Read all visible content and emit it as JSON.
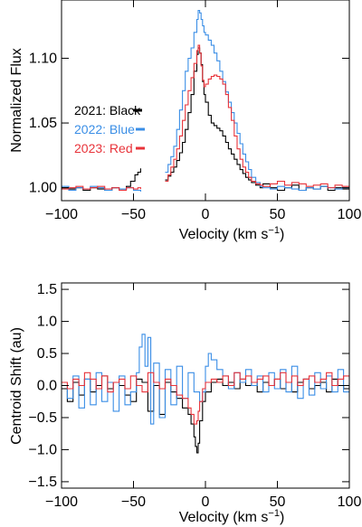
{
  "chart_data": [
    {
      "type": "line",
      "xlabel": "Velocity (km s",
      "xlabel_sup": "−1",
      "xlabel_close": ")",
      "ylabel": "Normalized Flux",
      "xlim": [
        -100,
        100
      ],
      "ylim": [
        0.99,
        1.145
      ],
      "xticks": [
        -100,
        -50,
        0,
        50,
        100
      ],
      "xtick_labels": [
        "−100",
        "−50",
        "0",
        "50",
        "100"
      ],
      "yticks": [
        1.0,
        1.05,
        1.1
      ],
      "ytick_labels": [
        "1.00",
        "1.05",
        "1.10"
      ],
      "grid": false,
      "legend_position": "left",
      "series": [
        {
          "name": "2021: Black",
          "color": "#000000",
          "segments": [
            {
              "x": [
                -100,
                -95,
                -90,
                -85,
                -80,
                -75,
                -70,
                -65,
                -60,
                -55,
                -52,
                -49,
                -47,
                -45
              ],
              "y": [
                1.0,
                0.999,
                1.0,
                0.998,
                1.0,
                0.999,
                0.998,
                1.0,
                0.999,
                1.001,
                1.005,
                1.01,
                1.012,
                1.015
              ]
            },
            {
              "x": [
                -28,
                -26,
                -24,
                -22,
                -20,
                -18,
                -16,
                -14,
                -12,
                -10,
                -8,
                -6,
                -5,
                -4,
                -3,
                -2,
                -1,
                0,
                2,
                4,
                6,
                8,
                10,
                12,
                14,
                16,
                18,
                20,
                22,
                24,
                26,
                28,
                30,
                32,
                35,
                38,
                40,
                45,
                50,
                55,
                60,
                65,
                70,
                75,
                80,
                85,
                90,
                95,
                100
              ],
              "y": [
                1.006,
                1.009,
                1.012,
                1.016,
                1.021,
                1.027,
                1.035,
                1.045,
                1.058,
                1.072,
                1.09,
                1.103,
                1.108,
                1.104,
                1.095,
                1.082,
                1.072,
                1.066,
                1.056,
                1.05,
                1.048,
                1.046,
                1.044,
                1.04,
                1.035,
                1.03,
                1.026,
                1.022,
                1.018,
                1.014,
                1.011,
                1.008,
                1.006,
                1.004,
                1.002,
                1.0,
                1.003,
                1.0,
                0.998,
                1.0,
                1.002,
                0.998,
                1.0,
                0.999,
                1.001,
                0.998,
                1.0,
                0.999,
                1.0
              ]
            }
          ]
        },
        {
          "name": "2022: Blue",
          "color": "#3a8ee6",
          "segments": [
            {
              "x": [
                -100,
                -95,
                -90,
                -85,
                -80,
                -75,
                -70,
                -65,
                -60,
                -55,
                -50,
                -47,
                -45
              ],
              "y": [
                1.001,
                0.998,
                1.0,
                0.999,
                1.001,
                1.0,
                0.998,
                1.0,
                0.999,
                1.0,
                0.998,
                0.998,
                0.997
              ]
            },
            {
              "x": [
                -28,
                -26,
                -24,
                -22,
                -20,
                -18,
                -16,
                -14,
                -12,
                -10,
                -8,
                -6,
                -5,
                -4,
                -3,
                -2,
                -1,
                0,
                2,
                4,
                6,
                8,
                10,
                12,
                14,
                16,
                18,
                20,
                22,
                24,
                26,
                28,
                30,
                32,
                35,
                38,
                40,
                45,
                50,
                55,
                60,
                65,
                70,
                75,
                80,
                85,
                90,
                95,
                100
              ],
              "y": [
                1.012,
                1.018,
                1.024,
                1.032,
                1.045,
                1.06,
                1.075,
                1.09,
                1.1,
                1.108,
                1.12,
                1.13,
                1.137,
                1.135,
                1.13,
                1.125,
                1.12,
                1.118,
                1.114,
                1.11,
                1.104,
                1.098,
                1.09,
                1.082,
                1.074,
                1.066,
                1.058,
                1.05,
                1.042,
                1.034,
                1.026,
                1.02,
                1.014,
                1.008,
                1.004,
                1.001,
                1.0,
                0.999,
                1.001,
                1.0,
                0.999,
                0.998,
                1.0,
                0.999,
                1.001,
                1.0,
                0.999,
                1.0,
                1.0
              ]
            }
          ]
        },
        {
          "name": "2023: Red",
          "color": "#e8333a",
          "segments": [
            {
              "x": [
                -100,
                -95,
                -90,
                -85,
                -80,
                -75,
                -70,
                -65,
                -60,
                -55,
                -50,
                -47,
                -45
              ],
              "y": [
                0.999,
                1.0,
                1.001,
                0.999,
                1.0,
                1.001,
                0.999,
                1.0,
                0.998,
                1.0,
                0.999,
                1.0,
                0.999
              ]
            },
            {
              "x": [
                -28,
                -26,
                -24,
                -22,
                -20,
                -18,
                -16,
                -14,
                -12,
                -10,
                -8,
                -6,
                -5,
                -4,
                -3,
                -2,
                -1,
                0,
                2,
                4,
                6,
                8,
                10,
                12,
                14,
                16,
                18,
                20,
                22,
                24,
                26,
                28,
                30,
                32,
                35,
                38,
                40,
                45,
                50,
                55,
                60,
                65,
                70,
                75,
                80,
                85,
                90,
                95,
                100
              ],
              "y": [
                1.005,
                1.01,
                1.016,
                1.022,
                1.03,
                1.04,
                1.052,
                1.064,
                1.075,
                1.085,
                1.096,
                1.106,
                1.11,
                1.104,
                1.094,
                1.083,
                1.078,
                1.08,
                1.084,
                1.086,
                1.087,
                1.086,
                1.084,
                1.08,
                1.072,
                1.062,
                1.052,
                1.04,
                1.03,
                1.022,
                1.016,
                1.012,
                1.008,
                1.005,
                1.003,
                1.002,
                1.001,
                1.003,
                1.005,
                1.002,
                1.004,
                1.003,
                1.001,
                1.002,
                1.003,
                1.0,
                1.002,
                1.001,
                1.0
              ]
            }
          ]
        }
      ]
    },
    {
      "type": "line",
      "xlabel": "Velocity (km s",
      "xlabel_sup": "−1",
      "xlabel_close": ")",
      "ylabel": "Centroid Shift (au)",
      "xlim": [
        -100,
        100
      ],
      "ylim": [
        -1.6,
        1.6
      ],
      "xticks": [
        -100,
        -50,
        0,
        50,
        100
      ],
      "xtick_labels": [
        "−100",
        "−50",
        "0",
        "50",
        "100"
      ],
      "yticks": [
        -1.5,
        -1.0,
        -0.5,
        0.0,
        0.5,
        1.0,
        1.5
      ],
      "ytick_labels": [
        "−1.5",
        "−1.0",
        "−0.5",
        "0.0",
        "0.5",
        "1.0",
        "1.5"
      ],
      "grid": false,
      "series": [
        {
          "name": "2021",
          "color": "#000000",
          "x": [
            -100,
            -96,
            -92,
            -88,
            -84,
            -80,
            -76,
            -72,
            -68,
            -64,
            -60,
            -56,
            -52,
            -48,
            -44,
            -40,
            -36,
            -32,
            -28,
            -24,
            -20,
            -16,
            -12,
            -10,
            -8,
            -7,
            -6,
            -5,
            -4,
            -2,
            0,
            4,
            8,
            12,
            16,
            20,
            24,
            28,
            32,
            36,
            40,
            44,
            48,
            52,
            56,
            60,
            64,
            68,
            72,
            76,
            80,
            84,
            88,
            92,
            96,
            100
          ],
          "y": [
            -0.05,
            -0.25,
            0.05,
            -0.15,
            0.1,
            -0.1,
            0.0,
            0.15,
            -0.05,
            0.05,
            0.0,
            -0.15,
            -0.25,
            0.1,
            0.05,
            -0.4,
            0.0,
            -0.45,
            0.05,
            -0.1,
            -0.2,
            -0.35,
            -0.45,
            -0.6,
            -0.8,
            -0.95,
            -1.05,
            -0.9,
            -0.55,
            -0.25,
            -0.1,
            0.05,
            0.1,
            0.0,
            0.05,
            -0.05,
            0.1,
            0.0,
            0.05,
            -0.1,
            0.05,
            0.0,
            0.1,
            -0.05,
            0.05,
            -0.1,
            0.05,
            0.1,
            -0.05,
            0.0,
            0.05,
            -0.1,
            0.1,
            0.0,
            -0.05,
            0.0
          ]
        },
        {
          "name": "2022",
          "color": "#3a8ee6",
          "x": [
            -100,
            -96,
            -92,
            -88,
            -84,
            -80,
            -76,
            -72,
            -68,
            -64,
            -60,
            -56,
            -52,
            -48,
            -46,
            -44,
            -42,
            -40,
            -38,
            -36,
            -32,
            -28,
            -24,
            -20,
            -16,
            -12,
            -8,
            -4,
            -2,
            0,
            2,
            4,
            8,
            12,
            16,
            20,
            24,
            28,
            32,
            36,
            40,
            44,
            48,
            52,
            56,
            60,
            64,
            68,
            72,
            76,
            80,
            84,
            88,
            92,
            96,
            100
          ],
          "y": [
            0.0,
            -0.2,
            0.15,
            -0.35,
            0.1,
            -0.3,
            0.2,
            -0.25,
            0.05,
            -0.4,
            0.15,
            -0.3,
            -0.1,
            0.2,
            0.6,
            0.8,
            0.3,
            0.75,
            -0.6,
            0.35,
            -0.5,
            0.25,
            -0.3,
            0.3,
            -0.2,
            0.2,
            -0.1,
            -0.25,
            -0.1,
            0.3,
            0.5,
            0.4,
            0.25,
            0.15,
            -0.05,
            0.2,
            0.05,
            0.25,
            0.0,
            0.15,
            -0.1,
            0.2,
            -0.05,
            0.25,
            -0.1,
            0.3,
            -0.2,
            0.1,
            -0.15,
            0.2,
            -0.05,
            0.15,
            -0.1,
            0.25,
            -0.1,
            0.05
          ]
        },
        {
          "name": "2023",
          "color": "#e8333a",
          "x": [
            -100,
            -96,
            -92,
            -88,
            -84,
            -80,
            -76,
            -72,
            -68,
            -64,
            -60,
            -56,
            -52,
            -48,
            -44,
            -40,
            -36,
            -32,
            -28,
            -24,
            -20,
            -16,
            -12,
            -10,
            -8,
            -6,
            -5,
            -4,
            -2,
            0,
            4,
            8,
            12,
            16,
            20,
            24,
            28,
            32,
            36,
            40,
            44,
            48,
            52,
            56,
            60,
            64,
            68,
            72,
            76,
            80,
            84,
            88,
            92,
            96,
            100
          ],
          "y": [
            0.05,
            -0.05,
            0.1,
            0.0,
            0.2,
            0.1,
            -0.05,
            0.15,
            -0.1,
            0.05,
            0.1,
            -0.05,
            0.15,
            0.0,
            -0.1,
            0.2,
            0.05,
            -0.05,
            0.1,
            0.0,
            -0.15,
            -0.2,
            -0.35,
            -0.45,
            -0.6,
            -0.55,
            -0.4,
            -0.25,
            -0.05,
            0.05,
            0.1,
            0.05,
            0.15,
            0.0,
            0.2,
            0.1,
            0.15,
            0.05,
            0.1,
            0.15,
            0.0,
            0.1,
            0.2,
            0.05,
            0.15,
            0.0,
            0.1,
            0.15,
            0.05,
            0.1,
            0.2,
            0.0,
            0.1,
            0.15,
            0.1
          ]
        }
      ]
    }
  ]
}
